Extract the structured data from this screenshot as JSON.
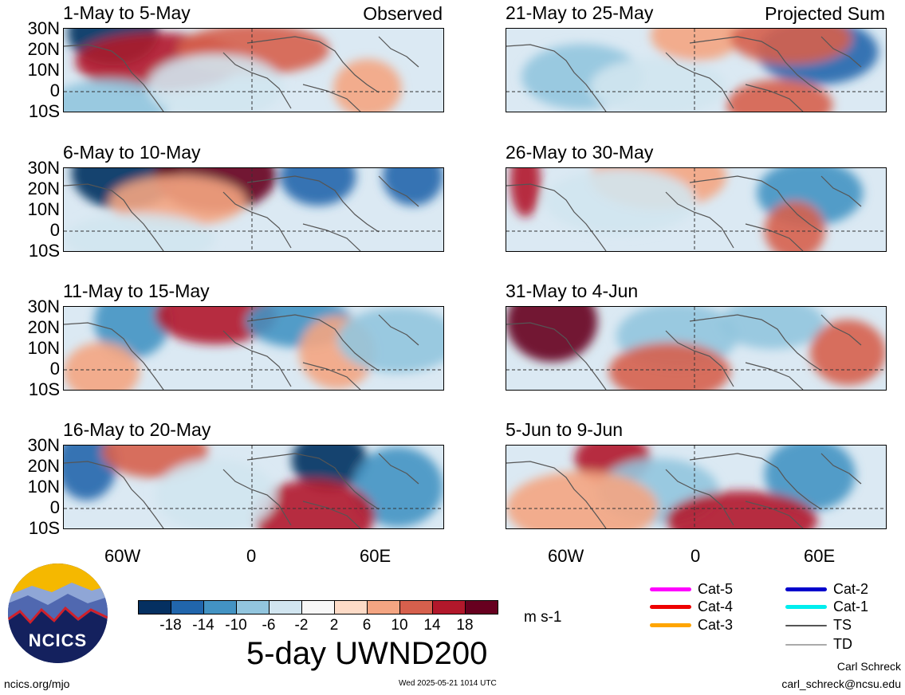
{
  "panels": [
    {
      "title": "1-May to 5-May",
      "tag": "Observed"
    },
    {
      "title": "6-May to 10-May",
      "tag": ""
    },
    {
      "title": "11-May to 15-May",
      "tag": ""
    },
    {
      "title": "16-May to 20-May",
      "tag": ""
    },
    {
      "title": "21-May to 25-May",
      "tag": "Projected Sum"
    },
    {
      "title": "26-May to 30-May",
      "tag": ""
    },
    {
      "title": "31-May to 4-Jun",
      "tag": ""
    },
    {
      "title": "5-Jun to 9-Jun",
      "tag": ""
    }
  ],
  "lat_labels": [
    "30N",
    "20N",
    "10N",
    "0",
    "10S"
  ],
  "lon_labels": [
    "60W",
    "0",
    "60E"
  ],
  "colorbar": {
    "labels": [
      "-18",
      "-14",
      "-10",
      "-6",
      "-2",
      "2",
      "6",
      "10",
      "14",
      "18"
    ],
    "colors": [
      "#053061",
      "#2166ac",
      "#4393c3",
      "#92c5de",
      "#d1e5f0",
      "#f7f7f7",
      "#fddbc7",
      "#f4a582",
      "#d6604d",
      "#b2182b",
      "#67001f"
    ],
    "units": "m s-1"
  },
  "main_title": "5-day UWND200",
  "legend": [
    {
      "label": "Cat-5",
      "color": "#ff00ff"
    },
    {
      "label": "Cat-4",
      "color": "#ee0000"
    },
    {
      "label": "Cat-3",
      "color": "#ffa500"
    },
    {
      "label": "Cat-2",
      "color": "#0000cc"
    },
    {
      "label": "Cat-1",
      "color": "#00eeee"
    },
    {
      "label": "TS",
      "color": "#555555"
    },
    {
      "label": "TD",
      "color": "#aaaaaa"
    }
  ],
  "logo_text": "NCICS",
  "footer": {
    "url": "ncics.org/mjo",
    "timestamp": "Wed 2025-05-21 1014 UTC",
    "author": "Carl Schreck",
    "email": "carl_schreck@ncsu.edu"
  }
}
